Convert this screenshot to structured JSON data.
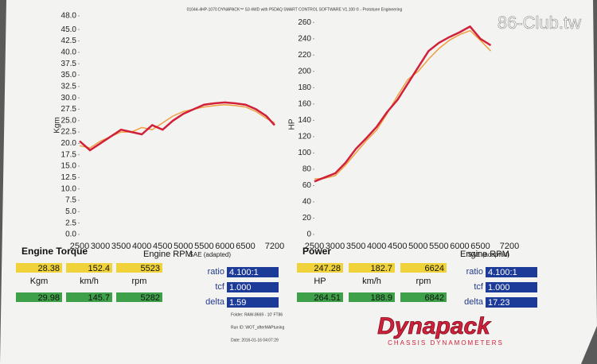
{
  "header": "01044-4HP-1070 DYNAPACK™ S3 4WD with P5DAQ SMART CONTROL SOFTWARE V1.100 © - Prototune Engineering",
  "watermark": "86-Club.tw",
  "chart_data": [
    {
      "type": "line",
      "y_label": "Kgm",
      "x": [
        2500,
        2750,
        3000,
        3250,
        3500,
        3750,
        4000,
        4250,
        4500,
        4750,
        5000,
        5250,
        5500,
        5750,
        6000,
        6250,
        6500,
        6750,
        7000,
        7200
      ],
      "xlim": [
        2500,
        7200
      ],
      "xticks": [
        2500,
        3000,
        3500,
        4000,
        4500,
        5000,
        5500,
        6000,
        6500,
        7200
      ],
      "ylim": [
        0,
        48
      ],
      "yticks": [
        {
          "value": 0,
          "label": "0.0"
        },
        2.5,
        {
          "value": 5,
          "label": "5.0"
        },
        7.5,
        {
          "value": 10,
          "label": "10.0"
        },
        12.5,
        {
          "value": 15,
          "label": "15.0"
        },
        17.5,
        {
          "value": 20,
          "label": "20.0"
        },
        22.5,
        {
          "value": 25,
          "label": "25.0"
        },
        27.5,
        {
          "value": 30,
          "label": "30.0"
        },
        32.5,
        {
          "value": 35,
          "label": "35.0"
        },
        37.5,
        {
          "value": 40,
          "label": "40.0"
        },
        42.5,
        {
          "value": 45,
          "label": "45.0"
        },
        {
          "value": 48,
          "label": "48.0"
        }
      ],
      "series": [
        {
          "color": "#d0203a",
          "values": [
            20.5,
            18.5,
            20,
            21.5,
            23,
            22.5,
            22,
            24,
            23,
            25,
            26.5,
            27.5,
            28.5,
            28.8,
            29,
            28.8,
            28.5,
            27.5,
            26,
            24
          ]
        },
        {
          "color": "#f0a040",
          "values": [
            19.5,
            19,
            20.5,
            21.5,
            22.5,
            22.5,
            23.5,
            23,
            24.5,
            26,
            27,
            27.5,
            28,
            28.3,
            28.5,
            28.3,
            28,
            27,
            25.5,
            24.5
          ]
        }
      ]
    },
    {
      "type": "line",
      "y_label": "HP",
      "x": [
        2500,
        2750,
        3000,
        3250,
        3500,
        3750,
        4000,
        4250,
        4500,
        4750,
        5000,
        5250,
        5500,
        5750,
        6000,
        6250,
        6500,
        6750
      ],
      "xlim": [
        2500,
        7200
      ],
      "xticks": [
        2500,
        3000,
        3500,
        4000,
        4500,
        5000,
        5500,
        6000,
        6500,
        7200
      ],
      "ylim": [
        0,
        270
      ],
      "yticks": [
        0,
        20,
        40,
        60,
        80,
        100,
        120,
        140,
        160,
        180,
        200,
        220,
        240,
        260
      ],
      "series": [
        {
          "color": "#d0203a",
          "values": [
            65,
            70,
            75,
            88,
            105,
            118,
            132,
            150,
            165,
            185,
            205,
            225,
            235,
            242,
            248,
            255,
            240,
            232
          ]
        },
        {
          "color": "#f0a040",
          "values": [
            68,
            69,
            72,
            85,
            100,
            115,
            128,
            148,
            170,
            190,
            200,
            215,
            228,
            238,
            245,
            250,
            238,
            225
          ]
        }
      ]
    }
  ],
  "panels": [
    {
      "title": "Engine Torque",
      "rpm_label": "Engine RPM",
      "sae": "SAE (adapted)",
      "row1": [
        "28.38",
        "152.4",
        "5523"
      ],
      "units": [
        "Kgm",
        "km/h",
        "rpm"
      ],
      "row2": [
        "29.98",
        "145.7",
        "5282"
      ],
      "params": [
        {
          "label": "ratio",
          "value": "4.100:1"
        },
        {
          "label": "tcf",
          "value": "1.000"
        },
        {
          "label": "delta",
          "value": "1.59"
        }
      ]
    },
    {
      "title": "Power",
      "rpm_label": "Engine RPM",
      "sae": "SAE (adapted)",
      "row1": [
        "247.28",
        "182.7",
        "6624"
      ],
      "units": [
        "HP",
        "km/h",
        "rpm"
      ],
      "row2": [
        "264.51",
        "188.9",
        "6842"
      ],
      "params": [
        {
          "label": "ratio",
          "value": "4.100:1"
        },
        {
          "label": "tcf",
          "value": "1.000"
        },
        {
          "label": "delta",
          "value": "17.23"
        }
      ]
    }
  ],
  "footer": [
    "Folder: RAW-8669 - 10' FT86",
    "Run ID: WOT_afterMAPtuning",
    "Date: 2016-01-16 04:07:29"
  ],
  "logo": {
    "name": "Dynapack",
    "tagline": "CHASSIS DYNAMOMETERS"
  }
}
